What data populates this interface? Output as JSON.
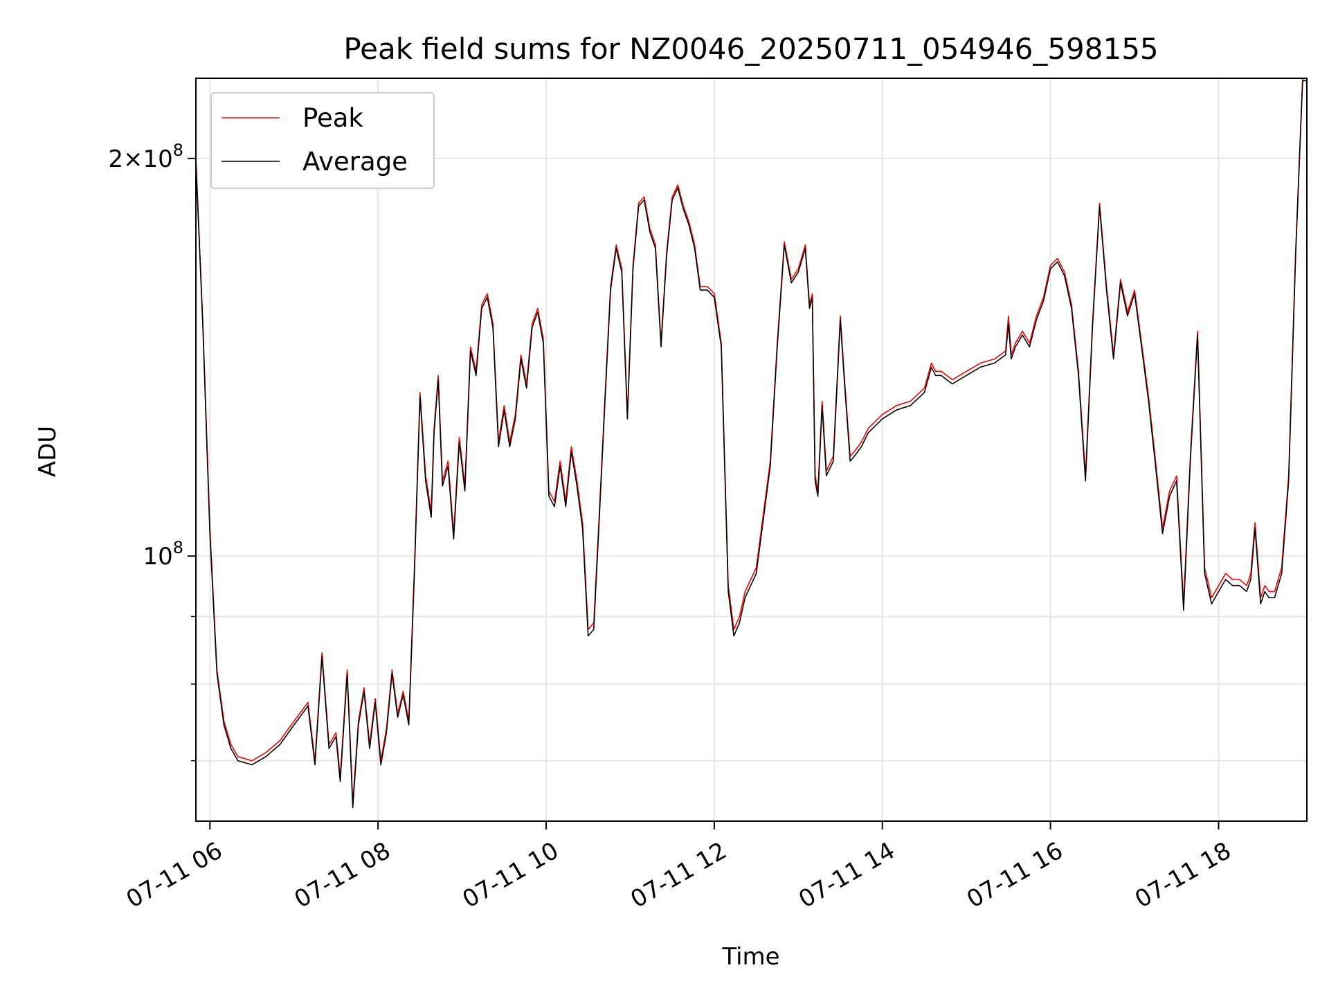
{
  "chart_data": {
    "type": "line",
    "title": "Peak field sums for NZ0046_20250711_054946_598155",
    "xlabel": "Time",
    "ylabel": "ADU",
    "yscale": "log",
    "ylim": [
      63000000,
      230000000
    ],
    "xlim": [
      "07-11 05:50",
      "07-11 19:03"
    ],
    "grid": true,
    "legend_position": "top-left",
    "x_ticks": [
      "07-11 06",
      "07-11 08",
      "07-11 10",
      "07-11 12",
      "07-11 14",
      "07-11 16",
      "07-11 18"
    ],
    "x_tick_times": [
      "07-11 06:00",
      "07-11 08:00",
      "07-11 10:00",
      "07-11 12:00",
      "07-11 14:00",
      "07-11 16:00",
      "07-11 18:00"
    ],
    "y_ticks": [
      {
        "base": "2",
        "exponent": "8",
        "value": 200000000
      },
      {
        "base": "10",
        "exponent": "8",
        "value": 100000000
      }
    ],
    "y_minor_ticks": [
      70000000,
      80000000,
      90000000
    ],
    "series": [
      {
        "name": "Peak",
        "color": "#ff0000",
        "x": [
          "07-11 05:50",
          "07-11 05:55",
          "07-11 06:00",
          "07-11 06:05",
          "07-11 06:10",
          "07-11 06:15",
          "07-11 06:20",
          "07-11 06:30",
          "07-11 06:40",
          "07-11 06:50",
          "07-11 07:00",
          "07-11 07:10",
          "07-11 07:15",
          "07-11 07:20",
          "07-11 07:25",
          "07-11 07:30",
          "07-11 07:33",
          "07-11 07:38",
          "07-11 07:42",
          "07-11 07:46",
          "07-11 07:50",
          "07-11 07:54",
          "07-11 07:58",
          "07-11 08:02",
          "07-11 08:06",
          "07-11 08:10",
          "07-11 08:14",
          "07-11 08:18",
          "07-11 08:22",
          "07-11 08:26",
          "07-11 08:30",
          "07-11 08:34",
          "07-11 08:38",
          "07-11 08:40",
          "07-11 08:43",
          "07-11 08:46",
          "07-11 08:50",
          "07-11 08:54",
          "07-11 08:58",
          "07-11 09:02",
          "07-11 09:06",
          "07-11 09:10",
          "07-11 09:14",
          "07-11 09:18",
          "07-11 09:22",
          "07-11 09:26",
          "07-11 09:30",
          "07-11 09:34",
          "07-11 09:38",
          "07-11 09:42",
          "07-11 09:46",
          "07-11 09:50",
          "07-11 09:54",
          "07-11 09:58",
          "07-11 10:02",
          "07-11 10:06",
          "07-11 10:10",
          "07-11 10:14",
          "07-11 10:18",
          "07-11 10:22",
          "07-11 10:26",
          "07-11 10:30",
          "07-11 10:34",
          "07-11 10:38",
          "07-11 10:42",
          "07-11 10:46",
          "07-11 10:50",
          "07-11 10:54",
          "07-11 10:58",
          "07-11 11:02",
          "07-11 11:06",
          "07-11 11:10",
          "07-11 11:14",
          "07-11 11:18",
          "07-11 11:22",
          "07-11 11:26",
          "07-11 11:30",
          "07-11 11:34",
          "07-11 11:38",
          "07-11 11:42",
          "07-11 11:46",
          "07-11 11:50",
          "07-11 11:55",
          "07-11 12:00",
          "07-11 12:05",
          "07-11 12:10",
          "07-11 12:14",
          "07-11 12:18",
          "07-11 12:22",
          "07-11 12:30",
          "07-11 12:40",
          "07-11 12:45",
          "07-11 12:50",
          "07-11 12:55",
          "07-11 13:00",
          "07-11 13:05",
          "07-11 13:08",
          "07-11 13:10",
          "07-11 13:12",
          "07-11 13:14",
          "07-11 13:17",
          "07-11 13:20",
          "07-11 13:25",
          "07-11 13:30",
          "07-11 13:33",
          "07-11 13:37",
          "07-11 13:40",
          "07-11 13:45",
          "07-11 13:50",
          "07-11 14:00",
          "07-11 14:10",
          "07-11 14:20",
          "07-11 14:30",
          "07-11 14:35",
          "07-11 14:38",
          "07-11 14:42",
          "07-11 14:50",
          "07-11 15:00",
          "07-11 15:10",
          "07-11 15:20",
          "07-11 15:28",
          "07-11 15:30",
          "07-11 15:32",
          "07-11 15:35",
          "07-11 15:40",
          "07-11 15:45",
          "07-11 15:50",
          "07-11 15:55",
          "07-11 16:00",
          "07-11 16:05",
          "07-11 16:10",
          "07-11 16:15",
          "07-11 16:20",
          "07-11 16:25",
          "07-11 16:30",
          "07-11 16:35",
          "07-11 16:40",
          "07-11 16:45",
          "07-11 16:50",
          "07-11 16:55",
          "07-11 17:00",
          "07-11 17:05",
          "07-11 17:10",
          "07-11 17:15",
          "07-11 17:20",
          "07-11 17:25",
          "07-11 17:30",
          "07-11 17:35",
          "07-11 17:40",
          "07-11 17:45",
          "07-11 17:50",
          "07-11 17:55",
          "07-11 18:00",
          "07-11 18:05",
          "07-11 18:10",
          "07-11 18:15",
          "07-11 18:20",
          "07-11 18:23",
          "07-11 18:26",
          "07-11 18:30",
          "07-11 18:33",
          "07-11 18:36",
          "07-11 18:40",
          "07-11 18:45",
          "07-11 18:50",
          "07-11 18:55",
          "07-11 19:00",
          "07-11 19:03"
        ],
        "values": [
          200000000,
          150000000,
          105000000,
          82000000,
          75000000,
          72000000,
          70500000,
          70000000,
          71000000,
          72500000,
          75000000,
          77500000,
          70000000,
          84500000,
          72000000,
          73500000,
          68000000,
          82000000,
          65000000,
          75000000,
          79500000,
          72000000,
          78000000,
          70000000,
          74000000,
          82000000,
          76000000,
          79000000,
          75000000,
          98000000,
          133000000,
          115000000,
          108000000,
          125000000,
          137000000,
          114000000,
          118000000,
          104000000,
          123000000,
          113000000,
          144000000,
          138000000,
          155000000,
          158000000,
          150000000,
          122000000,
          130000000,
          122000000,
          128000000,
          142000000,
          135000000,
          150000000,
          154000000,
          146000000,
          112000000,
          110000000,
          118000000,
          110000000,
          121000000,
          114000000,
          106000000,
          88000000,
          89000000,
          108000000,
          132000000,
          160000000,
          172000000,
          165000000,
          128000000,
          166000000,
          185000000,
          187000000,
          177000000,
          172000000,
          145000000,
          170000000,
          187000000,
          191000000,
          184000000,
          179000000,
          172000000,
          160000000,
          160000000,
          158000000,
          145000000,
          95000000,
          88000000,
          90000000,
          94000000,
          98000000,
          118000000,
          145000000,
          173000000,
          162000000,
          165000000,
          172000000,
          155000000,
          158000000,
          115000000,
          112000000,
          131000000,
          116000000,
          119000000,
          152000000,
          136000000,
          119000000,
          120000000,
          122000000,
          125000000,
          128000000,
          130000000,
          131000000,
          134000000,
          140000000,
          138000000,
          138000000,
          136000000,
          138000000,
          140000000,
          141000000,
          143000000,
          152000000,
          142000000,
          145000000,
          148000000,
          145000000,
          152000000,
          157000000,
          166000000,
          168000000,
          164000000,
          155000000,
          138000000,
          115000000,
          150000000,
          185000000,
          160000000,
          142000000,
          162000000,
          153000000,
          159000000,
          145000000,
          132000000,
          118000000,
          105000000,
          112000000,
          115000000,
          92000000,
          120000000,
          148000000,
          98000000,
          93000000,
          95000000,
          97000000,
          96000000,
          96000000,
          95000000,
          97000000,
          106000000,
          93000000,
          95000000,
          94000000,
          94000000,
          98000000,
          115000000,
          170000000,
          230000000,
          230000000
        ]
      },
      {
        "name": "Average",
        "color": "#000000",
        "x": [
          "07-11 05:50",
          "07-11 05:55",
          "07-11 06:00",
          "07-11 06:05",
          "07-11 06:10",
          "07-11 06:15",
          "07-11 06:20",
          "07-11 06:30",
          "07-11 06:40",
          "07-11 06:50",
          "07-11 07:00",
          "07-11 07:10",
          "07-11 07:15",
          "07-11 07:20",
          "07-11 07:25",
          "07-11 07:30",
          "07-11 07:33",
          "07-11 07:38",
          "07-11 07:42",
          "07-11 07:46",
          "07-11 07:50",
          "07-11 07:54",
          "07-11 07:58",
          "07-11 08:02",
          "07-11 08:06",
          "07-11 08:10",
          "07-11 08:14",
          "07-11 08:18",
          "07-11 08:22",
          "07-11 08:26",
          "07-11 08:30",
          "07-11 08:34",
          "07-11 08:38",
          "07-11 08:40",
          "07-11 08:43",
          "07-11 08:46",
          "07-11 08:50",
          "07-11 08:54",
          "07-11 08:58",
          "07-11 09:02",
          "07-11 09:06",
          "07-11 09:10",
          "07-11 09:14",
          "07-11 09:18",
          "07-11 09:22",
          "07-11 09:26",
          "07-11 09:30",
          "07-11 09:34",
          "07-11 09:38",
          "07-11 09:42",
          "07-11 09:46",
          "07-11 09:50",
          "07-11 09:54",
          "07-11 09:58",
          "07-11 10:02",
          "07-11 10:06",
          "07-11 10:10",
          "07-11 10:14",
          "07-11 10:18",
          "07-11 10:22",
          "07-11 10:26",
          "07-11 10:30",
          "07-11 10:34",
          "07-11 10:38",
          "07-11 10:42",
          "07-11 10:46",
          "07-11 10:50",
          "07-11 10:54",
          "07-11 10:58",
          "07-11 11:02",
          "07-11 11:06",
          "07-11 11:10",
          "07-11 11:14",
          "07-11 11:18",
          "07-11 11:22",
          "07-11 11:26",
          "07-11 11:30",
          "07-11 11:34",
          "07-11 11:38",
          "07-11 11:42",
          "07-11 11:46",
          "07-11 11:50",
          "07-11 11:55",
          "07-11 12:00",
          "07-11 12:05",
          "07-11 12:10",
          "07-11 12:14",
          "07-11 12:18",
          "07-11 12:22",
          "07-11 12:30",
          "07-11 12:40",
          "07-11 12:45",
          "07-11 12:50",
          "07-11 12:55",
          "07-11 13:00",
          "07-11 13:05",
          "07-11 13:08",
          "07-11 13:10",
          "07-11 13:12",
          "07-11 13:14",
          "07-11 13:17",
          "07-11 13:20",
          "07-11 13:25",
          "07-11 13:30",
          "07-11 13:33",
          "07-11 13:37",
          "07-11 13:40",
          "07-11 13:45",
          "07-11 13:50",
          "07-11 14:00",
          "07-11 14:10",
          "07-11 14:20",
          "07-11 14:30",
          "07-11 14:35",
          "07-11 14:38",
          "07-11 14:42",
          "07-11 14:50",
          "07-11 15:00",
          "07-11 15:10",
          "07-11 15:20",
          "07-11 15:28",
          "07-11 15:30",
          "07-11 15:32",
          "07-11 15:35",
          "07-11 15:40",
          "07-11 15:45",
          "07-11 15:50",
          "07-11 15:55",
          "07-11 16:00",
          "07-11 16:05",
          "07-11 16:10",
          "07-11 16:15",
          "07-11 16:20",
          "07-11 16:25",
          "07-11 16:30",
          "07-11 16:35",
          "07-11 16:40",
          "07-11 16:45",
          "07-11 16:50",
          "07-11 16:55",
          "07-11 17:00",
          "07-11 17:05",
          "07-11 17:10",
          "07-11 17:15",
          "07-11 17:20",
          "07-11 17:25",
          "07-11 17:30",
          "07-11 17:35",
          "07-11 17:40",
          "07-11 17:45",
          "07-11 17:50",
          "07-11 17:55",
          "07-11 18:00",
          "07-11 18:05",
          "07-11 18:10",
          "07-11 18:15",
          "07-11 18:20",
          "07-11 18:23",
          "07-11 18:26",
          "07-11 18:30",
          "07-11 18:33",
          "07-11 18:36",
          "07-11 18:40",
          "07-11 18:45",
          "07-11 18:50",
          "07-11 18:55",
          "07-11 19:00",
          "07-11 19:03"
        ],
        "values": [
          199000000,
          149000000,
          104000000,
          81500000,
          74500000,
          71500000,
          70000000,
          69500000,
          70500000,
          72000000,
          74500000,
          77000000,
          69500000,
          84000000,
          71500000,
          73000000,
          67500000,
          81500000,
          64500000,
          74500000,
          79000000,
          71500000,
          77500000,
          69500000,
          73500000,
          81500000,
          75500000,
          78500000,
          74500000,
          97000000,
          132000000,
          114000000,
          107000000,
          124000000,
          136000000,
          113000000,
          117000000,
          103000000,
          122000000,
          112000000,
          143000000,
          137000000,
          154000000,
          157000000,
          149000000,
          121000000,
          129000000,
          121000000,
          127000000,
          141000000,
          134000000,
          149000000,
          153000000,
          145000000,
          111000000,
          109000000,
          117000000,
          109000000,
          120000000,
          113000000,
          105000000,
          87000000,
          88000000,
          107000000,
          131000000,
          159000000,
          171000000,
          164000000,
          127000000,
          165000000,
          184000000,
          186000000,
          176000000,
          171000000,
          144000000,
          169000000,
          186000000,
          190000000,
          183000000,
          178000000,
          171000000,
          159000000,
          159000000,
          157000000,
          144000000,
          94000000,
          87000000,
          89000000,
          93000000,
          97000000,
          117000000,
          144000000,
          172000000,
          161000000,
          164000000,
          171000000,
          154000000,
          157000000,
          114000000,
          111000000,
          130000000,
          115000000,
          118000000,
          151000000,
          135000000,
          118000000,
          119000000,
          121000000,
          124000000,
          127000000,
          129000000,
          130000000,
          133000000,
          139000000,
          137000000,
          137000000,
          135000000,
          137000000,
          139000000,
          140000000,
          142000000,
          150000000,
          141000000,
          144000000,
          147000000,
          144000000,
          151000000,
          156000000,
          165000000,
          167000000,
          163000000,
          154000000,
          137000000,
          114000000,
          149000000,
          184000000,
          159000000,
          141000000,
          161000000,
          152000000,
          158000000,
          144000000,
          131000000,
          117000000,
          104000000,
          111000000,
          114000000,
          91000000,
          119000000,
          147000000,
          97000000,
          92000000,
          94000000,
          96000000,
          95000000,
          95000000,
          94000000,
          96000000,
          105000000,
          92000000,
          94000000,
          93000000,
          93000000,
          97000000,
          114000000,
          169000000,
          229000000,
          229000000
        ]
      }
    ]
  }
}
